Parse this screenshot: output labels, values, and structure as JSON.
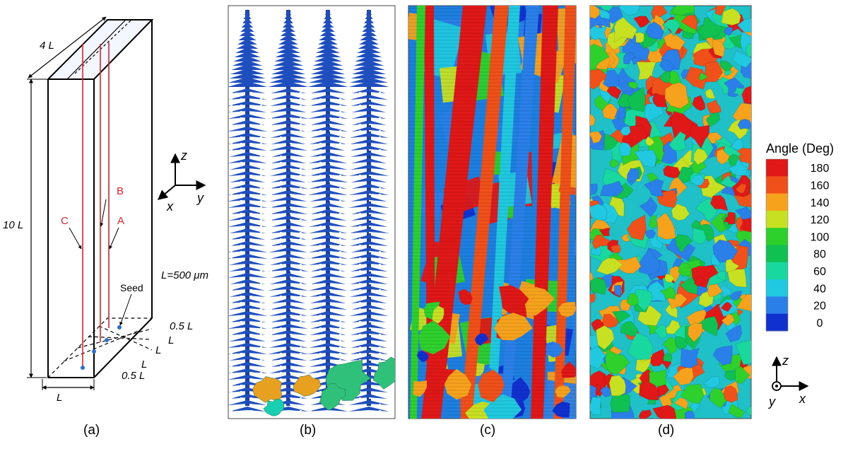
{
  "panel_a": {
    "dim_top": "4 L",
    "dim_height": "10 L",
    "dim_bottom": "L",
    "dim_right_1": "0.5 L",
    "dim_right_2": "L",
    "dim_right_3": "L",
    "dim_right_4": "L",
    "dim_right_5": "0.5 L",
    "label_a": "A",
    "label_b": "B",
    "label_c": "C",
    "seed": "Seed",
    "length_note": "L=500 μm"
  },
  "axes_top": {
    "z": "z",
    "y": "y",
    "x": "x"
  },
  "axes_bottom": {
    "z": "z",
    "y": "y",
    "x": "x"
  },
  "colorbar": {
    "title": "Angle (Deg)",
    "ticks": [
      "180",
      "160",
      "140",
      "120",
      "100",
      "80",
      "60",
      "40",
      "20",
      "0"
    ],
    "colors": [
      "#e01818",
      "#f0501a",
      "#f6a21c",
      "#c8e022",
      "#2ed02c",
      "#10c050",
      "#18d8a0",
      "#20c8e0",
      "#2a80e8",
      "#1030d0"
    ]
  },
  "captions": [
    "(a)",
    "(b)",
    "(c)",
    "(d)"
  ],
  "palette": {
    "panel_b_base": "#1f4fbf",
    "panel_b_grains": [
      "#e7a020",
      "#2fc07a",
      "#18d0b0"
    ],
    "panel_c_grains": [
      "#e01818",
      "#f0501a",
      "#f6a21c",
      "#2ed02c",
      "#20c8e0",
      "#2a80e8",
      "#1030d0",
      "#c8e022"
    ],
    "panel_d_grains": [
      "#e01818",
      "#f0501a",
      "#f6a21c",
      "#c8e022",
      "#2ed02c",
      "#10c050",
      "#18d8a0",
      "#20c8e0",
      "#2a80e8"
    ]
  }
}
